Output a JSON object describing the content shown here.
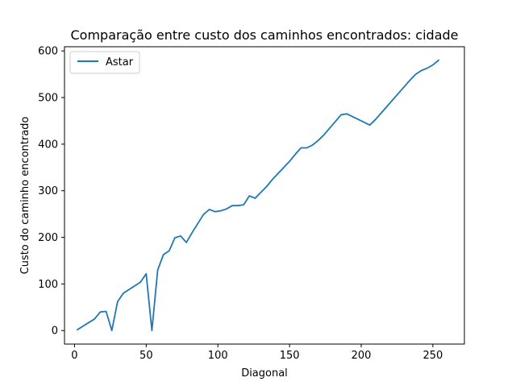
{
  "chart_data": {
    "type": "line",
    "title": "Comparação entre custo dos caminhos encontrados: cidade",
    "xlabel": "Diagonal",
    "ylabel": "Custo do caminho encontrado",
    "xlim": [
      -7,
      272
    ],
    "ylim": [
      -29,
      609
    ],
    "xticks": [
      0,
      50,
      100,
      150,
      200,
      250
    ],
    "yticks": [
      0,
      100,
      200,
      300,
      400,
      500,
      600
    ],
    "grid": false,
    "legend": "upper-left",
    "series": [
      {
        "name": "Astar",
        "color": "#1f77b4",
        "x": [
          2,
          14,
          18,
          22,
          26,
          30,
          34,
          46,
          50,
          54,
          58,
          62,
          66,
          70,
          74,
          78,
          82,
          90,
          94,
          98,
          102,
          106,
          110,
          114,
          118,
          122,
          126,
          134,
          138,
          146,
          150,
          154,
          158,
          162,
          166,
          170,
          174,
          186,
          190,
          206,
          210,
          214,
          218,
          222,
          226,
          230,
          234,
          238,
          242,
          246,
          250,
          254
        ],
        "y": [
          2,
          25,
          40,
          41,
          0,
          62,
          80,
          104,
          122,
          0,
          130,
          163,
          171,
          199,
          203,
          189,
          210,
          249,
          260,
          255,
          257,
          261,
          268,
          268,
          270,
          289,
          284,
          309,
          324,
          350,
          363,
          378,
          392,
          392,
          398,
          408,
          420,
          463,
          465,
          441,
          453,
          467,
          481,
          495,
          509,
          523,
          537,
          550,
          558,
          563,
          570,
          580
        ]
      }
    ]
  }
}
